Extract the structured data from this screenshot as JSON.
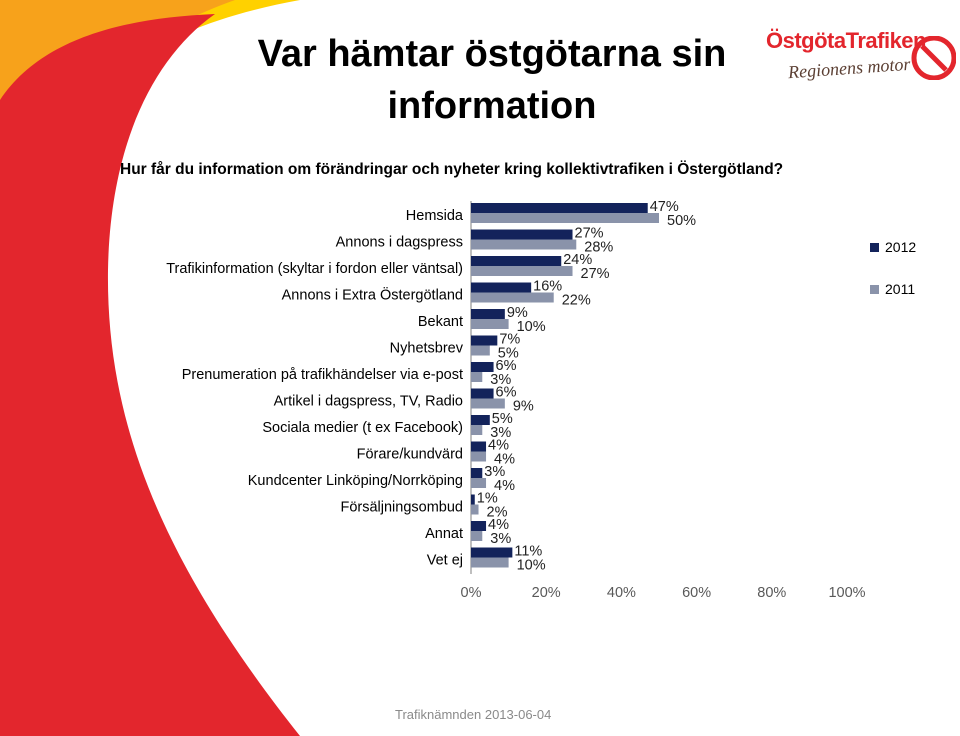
{
  "slide": {
    "title": "Var hämtar östgötarna sin information",
    "subtitle": "Hur får du information om förändringar och nyheter kring kollektivtrafiken i Östergötland?",
    "footer": "Trafiknämnden 2013-06-04"
  },
  "logo": {
    "brand": "ÖstgötaTrafiken",
    "tagline": "Regionens motor"
  },
  "colors": {
    "series_2012": "#13235b",
    "series_2011": "#8a93aa",
    "swoosh_red": "#e3262d",
    "swoosh_orange": "#f7a21b",
    "swoosh_yellow": "#ffd100"
  },
  "chart_data": {
    "type": "bar",
    "orientation": "horizontal",
    "categories": [
      "Hemsida",
      "Annons i dagspress",
      "Trafikinformation (skyltar i fordon eller väntsal)",
      "Annons i Extra Östergötland",
      "Bekant",
      "Nyhetsbrev",
      "Prenumeration på trafikhändelser via e-post",
      "Artikel i dagspress, TV, Radio",
      "Sociala medier (t ex Facebook)",
      "Förare/kundvärd",
      "Kundcenter Linköping/Norrköping",
      "Försäljningsombud",
      "Annat",
      "Vet ej"
    ],
    "series": [
      {
        "name": "2012",
        "values": [
          47,
          27,
          24,
          16,
          9,
          7,
          6,
          6,
          5,
          4,
          3,
          1,
          4,
          11
        ]
      },
      {
        "name": "2011",
        "values": [
          50,
          28,
          27,
          22,
          10,
          5,
          3,
          9,
          3,
          4,
          4,
          2,
          3,
          10
        ]
      }
    ],
    "value_labels": {
      "2012": [
        "47%",
        "27%",
        "24%",
        "16%",
        "9%",
        "7%",
        "6%",
        "6%",
        "5%",
        "4%",
        "3%",
        "1%",
        "4%",
        "11%"
      ],
      "2011": [
        "50%",
        "28%",
        "27%",
        "22%",
        "10%",
        "5%",
        "3%",
        "9%",
        "3%",
        "4%",
        "4%",
        "2%",
        "3%",
        "10%"
      ]
    },
    "xlim": [
      0,
      100
    ],
    "xticks": [
      0,
      20,
      40,
      60,
      80,
      100
    ],
    "xtick_labels": [
      "0%",
      "20%",
      "40%",
      "60%",
      "80%",
      "100%"
    ],
    "legend_position": "right",
    "grid": false
  }
}
